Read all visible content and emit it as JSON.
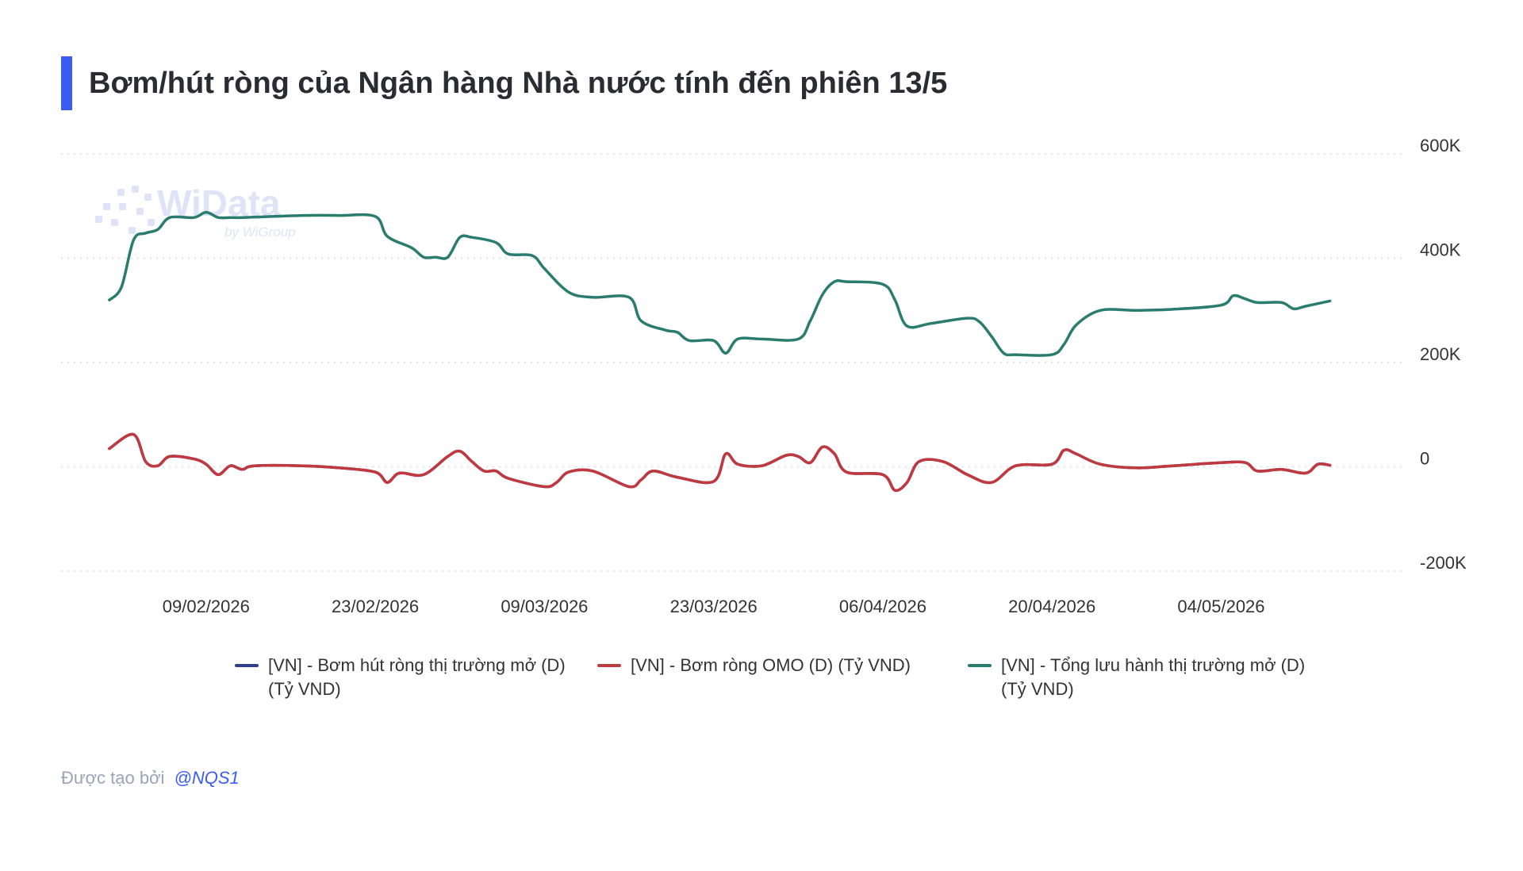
{
  "title": "Bơm/hút ròng của Ngân hàng Nhà nước tính đến phiên 13/5",
  "colors": {
    "accent": "#3b5bf5",
    "grid": "#d9d9d9",
    "series_net": "#2e3f8f",
    "series_omo": "#c0393f",
    "series_outstanding": "#2a7d6e"
  },
  "watermark": {
    "brand": "WiData",
    "tagline": "by WiGroup"
  },
  "footer": {
    "prefix": "Được tạo bởi",
    "handle": "@NQS1"
  },
  "chart_data": {
    "type": "line",
    "title": "Bơm/hút ròng của Ngân hàng Nhà nước tính đến phiên 13/5",
    "xlabel": "",
    "ylabel": "",
    "x_ticks": [
      "09/02/2026",
      "23/02/2026",
      "09/03/2026",
      "23/03/2026",
      "06/04/2026",
      "20/04/2026",
      "04/05/2026"
    ],
    "y_ticks": [
      "600K",
      "400K",
      "200K",
      "0",
      "-200K"
    ],
    "ylim": [
      -200000,
      600000
    ],
    "grid": true,
    "legend_position": "bottom",
    "series": [
      {
        "name": "[VN] - Bơm hút ròng thị trường mở (D) (Tỷ VND)",
        "color": "#2e3f8f",
        "points": [
          [
            "2026-02-01",
            35000
          ],
          [
            "2026-02-03",
            62000
          ],
          [
            "2026-02-04",
            10000
          ],
          [
            "2026-02-05",
            2000
          ],
          [
            "2026-02-06",
            20000
          ],
          [
            "2026-02-08",
            15000
          ],
          [
            "2026-02-09",
            5000
          ],
          [
            "2026-02-10",
            -15000
          ],
          [
            "2026-02-11",
            2000
          ],
          [
            "2026-02-12",
            -5000
          ],
          [
            "2026-02-13",
            2000
          ],
          [
            "2026-02-17",
            2000
          ],
          [
            "2026-02-20",
            -2000
          ],
          [
            "2026-02-23",
            -10000
          ],
          [
            "2026-02-24",
            -30000
          ],
          [
            "2026-02-25",
            -12000
          ],
          [
            "2026-02-27",
            -15000
          ],
          [
            "2026-03-01",
            20000
          ],
          [
            "2026-03-02",
            30000
          ],
          [
            "2026-03-03",
            10000
          ],
          [
            "2026-03-04",
            -8000
          ],
          [
            "2026-03-05",
            -8000
          ],
          [
            "2026-03-06",
            -22000
          ],
          [
            "2026-03-09",
            -38000
          ],
          [
            "2026-03-10",
            -30000
          ],
          [
            "2026-03-11",
            -10000
          ],
          [
            "2026-03-13",
            -8000
          ],
          [
            "2026-03-16",
            -38000
          ],
          [
            "2026-03-17",
            -25000
          ],
          [
            "2026-03-18",
            -8000
          ],
          [
            "2026-03-20",
            -20000
          ],
          [
            "2026-03-23",
            -28000
          ],
          [
            "2026-03-24",
            25000
          ],
          [
            "2026-03-25",
            5000
          ],
          [
            "2026-03-27",
            2000
          ],
          [
            "2026-03-29",
            22000
          ],
          [
            "2026-03-30",
            20000
          ],
          [
            "2026-03-31",
            8000
          ],
          [
            "2026-04-01",
            38000
          ],
          [
            "2026-04-02",
            25000
          ],
          [
            "2026-04-03",
            -10000
          ],
          [
            "2026-04-06",
            -15000
          ],
          [
            "2026-04-07",
            -45000
          ],
          [
            "2026-04-08",
            -30000
          ],
          [
            "2026-04-09",
            10000
          ],
          [
            "2026-04-11",
            10000
          ],
          [
            "2026-04-13",
            -15000
          ],
          [
            "2026-04-15",
            -30000
          ],
          [
            "2026-04-17",
            2000
          ],
          [
            "2026-04-20",
            5000
          ],
          [
            "2026-04-21",
            32000
          ],
          [
            "2026-04-22",
            25000
          ],
          [
            "2026-04-24",
            5000
          ],
          [
            "2026-04-27",
            -2000
          ],
          [
            "2026-04-30",
            2000
          ],
          [
            "2026-05-04",
            8000
          ],
          [
            "2026-05-06",
            8000
          ],
          [
            "2026-05-07",
            -8000
          ],
          [
            "2026-05-09",
            -5000
          ],
          [
            "2026-05-11",
            -12000
          ],
          [
            "2026-05-12",
            5000
          ],
          [
            "2026-05-13",
            3000
          ]
        ]
      },
      {
        "name": "[VN] - Bơm ròng OMO (D) (Tỷ VND)",
        "color": "#c0393f",
        "points": [
          [
            "2026-02-01",
            35000
          ],
          [
            "2026-02-03",
            62000
          ],
          [
            "2026-02-04",
            10000
          ],
          [
            "2026-02-05",
            2000
          ],
          [
            "2026-02-06",
            20000
          ],
          [
            "2026-02-08",
            15000
          ],
          [
            "2026-02-09",
            5000
          ],
          [
            "2026-02-10",
            -15000
          ],
          [
            "2026-02-11",
            2000
          ],
          [
            "2026-02-12",
            -5000
          ],
          [
            "2026-02-13",
            2000
          ],
          [
            "2026-02-17",
            2000
          ],
          [
            "2026-02-20",
            -2000
          ],
          [
            "2026-02-23",
            -10000
          ],
          [
            "2026-02-24",
            -30000
          ],
          [
            "2026-02-25",
            -12000
          ],
          [
            "2026-02-27",
            -15000
          ],
          [
            "2026-03-01",
            20000
          ],
          [
            "2026-03-02",
            30000
          ],
          [
            "2026-03-03",
            10000
          ],
          [
            "2026-03-04",
            -8000
          ],
          [
            "2026-03-05",
            -8000
          ],
          [
            "2026-03-06",
            -22000
          ],
          [
            "2026-03-09",
            -38000
          ],
          [
            "2026-03-10",
            -30000
          ],
          [
            "2026-03-11",
            -10000
          ],
          [
            "2026-03-13",
            -8000
          ],
          [
            "2026-03-16",
            -38000
          ],
          [
            "2026-03-17",
            -25000
          ],
          [
            "2026-03-18",
            -8000
          ],
          [
            "2026-03-20",
            -20000
          ],
          [
            "2026-03-23",
            -28000
          ],
          [
            "2026-03-24",
            25000
          ],
          [
            "2026-03-25",
            5000
          ],
          [
            "2026-03-27",
            2000
          ],
          [
            "2026-03-29",
            22000
          ],
          [
            "2026-03-30",
            20000
          ],
          [
            "2026-03-31",
            8000
          ],
          [
            "2026-04-01",
            38000
          ],
          [
            "2026-04-02",
            25000
          ],
          [
            "2026-04-03",
            -10000
          ],
          [
            "2026-04-06",
            -15000
          ],
          [
            "2026-04-07",
            -45000
          ],
          [
            "2026-04-08",
            -30000
          ],
          [
            "2026-04-09",
            10000
          ],
          [
            "2026-04-11",
            10000
          ],
          [
            "2026-04-13",
            -15000
          ],
          [
            "2026-04-15",
            -30000
          ],
          [
            "2026-04-17",
            2000
          ],
          [
            "2026-04-20",
            5000
          ],
          [
            "2026-04-21",
            32000
          ],
          [
            "2026-04-22",
            25000
          ],
          [
            "2026-04-24",
            5000
          ],
          [
            "2026-04-27",
            -2000
          ],
          [
            "2026-04-30",
            2000
          ],
          [
            "2026-05-04",
            8000
          ],
          [
            "2026-05-06",
            8000
          ],
          [
            "2026-05-07",
            -8000
          ],
          [
            "2026-05-09",
            -5000
          ],
          [
            "2026-05-11",
            -12000
          ],
          [
            "2026-05-12",
            5000
          ],
          [
            "2026-05-13",
            3000
          ]
        ]
      },
      {
        "name": "[VN] - Tổng lưu hành thị trường mở (D) (Tỷ VND)",
        "color": "#2a7d6e",
        "points": [
          [
            "2026-02-01",
            320000
          ],
          [
            "2026-02-02",
            345000
          ],
          [
            "2026-02-03",
            435000
          ],
          [
            "2026-02-04",
            448000
          ],
          [
            "2026-02-05",
            455000
          ],
          [
            "2026-02-06",
            478000
          ],
          [
            "2026-02-08",
            478000
          ],
          [
            "2026-02-09",
            488000
          ],
          [
            "2026-02-10",
            478000
          ],
          [
            "2026-02-11",
            478000
          ],
          [
            "2026-02-12",
            478000
          ],
          [
            "2026-02-17",
            482000
          ],
          [
            "2026-02-20",
            482000
          ],
          [
            "2026-02-23",
            480000
          ],
          [
            "2026-02-24",
            442000
          ],
          [
            "2026-02-26",
            420000
          ],
          [
            "2026-02-27",
            402000
          ],
          [
            "2026-02-28",
            402000
          ],
          [
            "2026-03-01",
            402000
          ],
          [
            "2026-03-02",
            440000
          ],
          [
            "2026-03-03",
            440000
          ],
          [
            "2026-03-05",
            430000
          ],
          [
            "2026-03-06",
            408000
          ],
          [
            "2026-03-08",
            405000
          ],
          [
            "2026-03-09",
            380000
          ],
          [
            "2026-03-11",
            335000
          ],
          [
            "2026-03-13",
            325000
          ],
          [
            "2026-03-16",
            325000
          ],
          [
            "2026-03-17",
            280000
          ],
          [
            "2026-03-19",
            262000
          ],
          [
            "2026-03-20",
            258000
          ],
          [
            "2026-03-21",
            242000
          ],
          [
            "2026-03-23",
            242000
          ],
          [
            "2026-03-24",
            218000
          ],
          [
            "2026-03-25",
            245000
          ],
          [
            "2026-03-27",
            245000
          ],
          [
            "2026-03-30",
            245000
          ],
          [
            "2026-03-31",
            280000
          ],
          [
            "2026-04-01",
            330000
          ],
          [
            "2026-04-02",
            355000
          ],
          [
            "2026-04-03",
            355000
          ],
          [
            "2026-04-06",
            350000
          ],
          [
            "2026-04-07",
            320000
          ],
          [
            "2026-04-08",
            270000
          ],
          [
            "2026-04-10",
            275000
          ],
          [
            "2026-04-13",
            285000
          ],
          [
            "2026-04-14",
            278000
          ],
          [
            "2026-04-15",
            250000
          ],
          [
            "2026-04-16",
            218000
          ],
          [
            "2026-04-17",
            215000
          ],
          [
            "2026-04-20",
            215000
          ],
          [
            "2026-04-21",
            235000
          ],
          [
            "2026-04-22",
            272000
          ],
          [
            "2026-04-24",
            300000
          ],
          [
            "2026-04-27",
            300000
          ],
          [
            "2026-04-30",
            302000
          ],
          [
            "2026-05-04",
            310000
          ],
          [
            "2026-05-05",
            328000
          ],
          [
            "2026-05-06",
            322000
          ],
          [
            "2026-05-07",
            315000
          ],
          [
            "2026-05-09",
            315000
          ],
          [
            "2026-05-10",
            303000
          ],
          [
            "2026-05-11",
            308000
          ],
          [
            "2026-05-13",
            318000
          ]
        ]
      }
    ]
  }
}
